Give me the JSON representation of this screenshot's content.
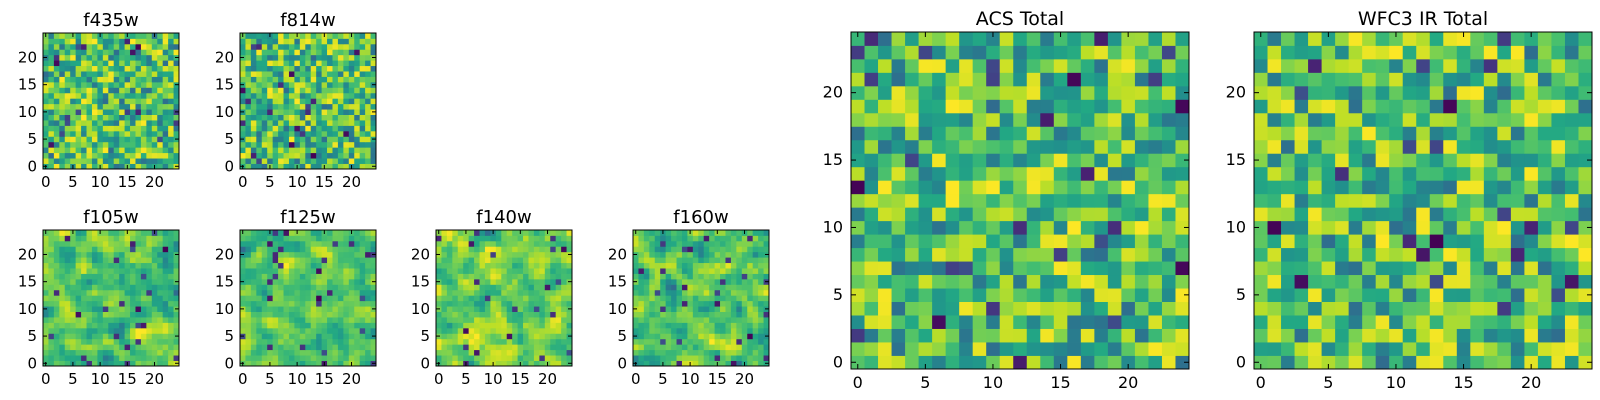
{
  "figure": {
    "panels": [
      {
        "id": "f435w",
        "title": "f435w",
        "seed": 101,
        "smooth": 0
      },
      {
        "id": "f814w",
        "title": "f814w",
        "seed": 202,
        "smooth": 0
      },
      {
        "id": "f105w",
        "title": "f105w",
        "seed": 303,
        "smooth": 1
      },
      {
        "id": "f125w",
        "title": "f125w",
        "seed": 404,
        "smooth": 1
      },
      {
        "id": "f140w",
        "title": "f140w",
        "seed": 505,
        "smooth": 1
      },
      {
        "id": "f160w",
        "title": "f160w",
        "seed": 606,
        "smooth": 1
      },
      {
        "id": "acs_total",
        "title": "ACS Total",
        "seed": 707,
        "smooth": 0
      },
      {
        "id": "wfc3_ir_total",
        "title": "WFC3 IR Total",
        "seed": 808,
        "smooth": 0
      }
    ],
    "small_ticks_x": [
      0,
      5,
      10,
      15,
      20
    ],
    "small_ticks_y": [
      0,
      5,
      10,
      15,
      20
    ],
    "large_ticks_x": [
      0,
      5,
      10,
      15,
      20
    ],
    "large_ticks_y": [
      0,
      5,
      10,
      15,
      20
    ]
  },
  "chart_data": [
    {
      "type": "heatmap",
      "title": "f435w",
      "x_range": [
        -0.5,
        24.5
      ],
      "y_range": [
        -0.5,
        24.5
      ],
      "grid": false,
      "colormap": "viridis",
      "xticks": [
        0,
        5,
        10,
        15,
        20
      ],
      "yticks": [
        0,
        5,
        10,
        15,
        20
      ]
    },
    {
      "type": "heatmap",
      "title": "f814w",
      "x_range": [
        -0.5,
        24.5
      ],
      "y_range": [
        -0.5,
        24.5
      ],
      "grid": false,
      "colormap": "viridis",
      "xticks": [
        0,
        5,
        10,
        15,
        20
      ],
      "yticks": [
        0,
        5,
        10,
        15,
        20
      ]
    },
    {
      "type": "heatmap",
      "title": "f105w",
      "x_range": [
        -0.5,
        24.5
      ],
      "y_range": [
        -0.5,
        24.5
      ],
      "grid": false,
      "colormap": "viridis",
      "xticks": [
        0,
        5,
        10,
        15,
        20
      ],
      "yticks": [
        0,
        5,
        10,
        15,
        20
      ]
    },
    {
      "type": "heatmap",
      "title": "f125w",
      "x_range": [
        -0.5,
        24.5
      ],
      "y_range": [
        -0.5,
        24.5
      ],
      "grid": false,
      "colormap": "viridis",
      "xticks": [
        0,
        5,
        10,
        15,
        20
      ],
      "yticks": [
        0,
        5,
        10,
        15,
        20
      ]
    },
    {
      "type": "heatmap",
      "title": "f140w",
      "x_range": [
        -0.5,
        24.5
      ],
      "y_range": [
        -0.5,
        24.5
      ],
      "grid": false,
      "colormap": "viridis",
      "xticks": [
        0,
        5,
        10,
        15,
        20
      ],
      "yticks": [
        0,
        5,
        10,
        15,
        20
      ]
    },
    {
      "type": "heatmap",
      "title": "f160w",
      "x_range": [
        -0.5,
        24.5
      ],
      "y_range": [
        -0.5,
        24.5
      ],
      "grid": false,
      "colormap": "viridis",
      "xticks": [
        0,
        5,
        10,
        15,
        20
      ],
      "yticks": [
        0,
        5,
        10,
        15,
        20
      ]
    },
    {
      "type": "heatmap",
      "title": "ACS Total",
      "x_range": [
        -0.5,
        24.5
      ],
      "y_range": [
        -0.5,
        24.5
      ],
      "grid": false,
      "colormap": "viridis",
      "xticks": [
        0,
        5,
        10,
        15,
        20
      ],
      "yticks": [
        0,
        5,
        10,
        15,
        20
      ]
    },
    {
      "type": "heatmap",
      "title": "WFC3 IR Total",
      "x_range": [
        -0.5,
        24.5
      ],
      "y_range": [
        -0.5,
        24.5
      ],
      "grid": false,
      "colormap": "viridis",
      "xticks": [
        0,
        5,
        10,
        15,
        20
      ],
      "yticks": [
        0,
        5,
        10,
        15,
        20
      ]
    }
  ]
}
